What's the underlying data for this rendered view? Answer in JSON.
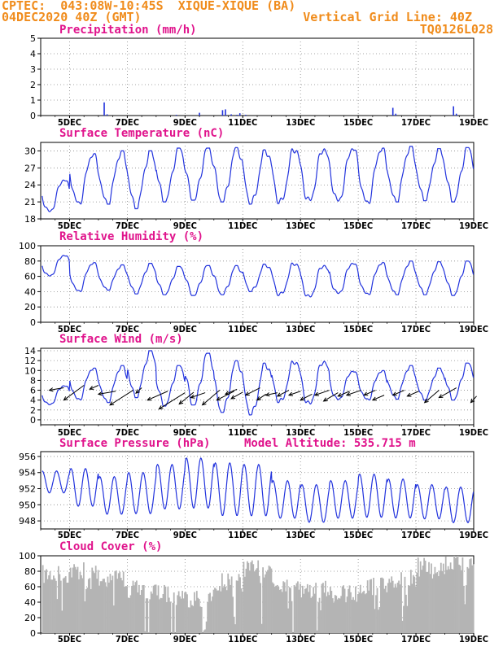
{
  "header": {
    "line1_left": "CPTEC:  043:08W-10:45S  XIQUE-XIQUE (BA)",
    "line2_left": "04DEC2020 40Z (GMT)",
    "line1_right": "Vertical Grid Line: 40Z",
    "line2_right": "TQ0126L028"
  },
  "colors": {
    "header": "#f08c1c",
    "title": "#e0148c",
    "line": "#2233dd",
    "bar": "#b4b4b4",
    "wind": "#000000"
  },
  "x_axis": {
    "tick_labels": [
      "5DEC",
      "7DEC",
      "9DEC",
      "11DEC",
      "13DEC",
      "15DEC",
      "17DEC",
      "19DEC"
    ],
    "tick_days": [
      5,
      7,
      9,
      11,
      13,
      15,
      17,
      19
    ],
    "xlim": [
      4.0,
      19.0
    ]
  },
  "chart_data": [
    {
      "id": "precip",
      "type": "bar",
      "title": "Precipitation (mm/h)",
      "ylim": [
        0,
        5
      ],
      "yticks": [
        "0",
        "1",
        "2",
        "3",
        "4",
        "5"
      ],
      "values": [
        [
          6.2,
          0.85
        ],
        [
          6.3,
          0.08
        ],
        [
          8.7,
          0.05
        ],
        [
          9.5,
          0.18
        ],
        [
          10.3,
          0.35
        ],
        [
          10.4,
          0.4
        ],
        [
          10.6,
          0.08
        ],
        [
          10.8,
          0.05
        ],
        [
          10.9,
          0.15
        ],
        [
          11.1,
          0.05
        ],
        [
          16.2,
          0.5
        ],
        [
          16.3,
          0.12
        ],
        [
          18.3,
          0.6
        ],
        [
          18.4,
          0.12
        ]
      ]
    },
    {
      "id": "temp",
      "type": "line",
      "title": "Surface Temperature (nC)",
      "ylim": [
        18,
        31.5
      ],
      "yticks": [
        "18",
        "21",
        "24",
        "27",
        "30"
      ],
      "series_params": {
        "days": [
          4,
          5,
          6,
          7,
          8,
          9,
          10,
          11,
          12,
          13,
          14,
          15,
          16,
          17,
          18,
          19
        ],
        "min": [
          19.2,
          20.6,
          20.6,
          19.8,
          21.0,
          21.3,
          21.0,
          20.6,
          20.7,
          21.0,
          21.0,
          20.7,
          21.0,
          21.2,
          21.0,
          23.0
        ],
        "max": [
          25.0,
          29.5,
          30.0,
          30.0,
          30.5,
          30.5,
          30.6,
          30.2,
          30.5,
          30.5,
          30.6,
          30.5,
          30.8,
          30.4,
          30.6,
          30.6
        ]
      }
    },
    {
      "id": "rh",
      "type": "line",
      "title": "Relative Humidity (%)",
      "ylim": [
        0,
        100
      ],
      "yticks": [
        "0",
        "20",
        "40",
        "60",
        "80",
        "100"
      ],
      "series_params": {
        "days": [
          4,
          5,
          6,
          7,
          8,
          9,
          10,
          11,
          12,
          13,
          14,
          15,
          16,
          17,
          18,
          19
        ],
        "min": [
          60,
          40,
          42,
          37,
          36,
          35,
          36,
          40,
          35,
          32,
          37,
          36,
          36,
          36,
          35,
          36
        ],
        "max": [
          88,
          78,
          75,
          77,
          73,
          74,
          74,
          76,
          78,
          75,
          78,
          78,
          80,
          79,
          80,
          78
        ]
      }
    },
    {
      "id": "wind",
      "type": "line",
      "title": "Surface Wind (m/s)",
      "ylim": [
        -1,
        14.5
      ],
      "yticks": [
        "0",
        "2",
        "4",
        "6",
        "8",
        "10",
        "12",
        "14"
      ],
      "series_params": {
        "days": [
          4,
          5,
          6,
          7,
          8,
          9,
          10,
          11,
          12,
          13,
          14,
          15,
          16,
          17,
          18,
          19
        ],
        "min": [
          3.0,
          4.0,
          3.5,
          4.5,
          2.8,
          3.0,
          1.5,
          1.0,
          3.5,
          3.0,
          4.0,
          4.0,
          4.2,
          4.0,
          4.0,
          5.0
        ],
        "max": [
          7.0,
          10.5,
          11.0,
          14.0,
          11.0,
          13.5,
          12.0,
          11.5,
          12.0,
          12.0,
          10.0,
          10.0,
          11.0,
          10.5,
          11.5,
          10.0
        ]
      },
      "barbs": [
        [
          4.3,
          6.0,
          4.8,
          6.5
        ],
        [
          4.8,
          4.0,
          5.5,
          7.0
        ],
        [
          5.7,
          6.2,
          6.0,
          7.0
        ],
        [
          6.0,
          5.2,
          6.6,
          5.8
        ],
        [
          6.4,
          3.0,
          7.2,
          6.0
        ],
        [
          7.3,
          5.4,
          7.5,
          6.5
        ],
        [
          7.7,
          4.0,
          8.4,
          5.8
        ],
        [
          8.1,
          2.2,
          9.0,
          5.5
        ],
        [
          8.8,
          3.2,
          9.3,
          5.6
        ],
        [
          9.2,
          4.5,
          9.7,
          5.5
        ],
        [
          9.6,
          3.0,
          10.2,
          6.0
        ],
        [
          10.1,
          4.0,
          10.7,
          5.8
        ],
        [
          10.4,
          5.2,
          10.8,
          6.2
        ],
        [
          10.6,
          4.3,
          11.0,
          5.6
        ],
        [
          11.1,
          5.0,
          11.6,
          6.5
        ],
        [
          11.5,
          4.0,
          11.8,
          5.2
        ],
        [
          11.8,
          5.0,
          12.2,
          5.5
        ],
        [
          12.2,
          4.8,
          12.6,
          6.0
        ],
        [
          12.6,
          5.0,
          13.0,
          5.8
        ],
        [
          13.0,
          4.0,
          13.4,
          5.2
        ],
        [
          13.5,
          5.0,
          14.0,
          6.0
        ],
        [
          13.8,
          3.8,
          14.3,
          5.5
        ],
        [
          14.3,
          4.8,
          14.7,
          5.8
        ],
        [
          14.6,
          5.0,
          15.1,
          6.0
        ],
        [
          15.2,
          5.0,
          15.6,
          6.0
        ],
        [
          15.5,
          4.0,
          15.9,
          5.0
        ],
        [
          16.2,
          5.0,
          16.6,
          6.0
        ],
        [
          16.7,
          4.8,
          17.1,
          5.8
        ],
        [
          17.3,
          3.5,
          17.8,
          6.0
        ],
        [
          17.8,
          4.5,
          18.4,
          6.5
        ],
        [
          18.9,
          3.5,
          19.1,
          4.8
        ]
      ]
    },
    {
      "id": "pres",
      "type": "line",
      "title": "Surface Pressure (hPa)",
      "annotation": "Model Altitude: 535.715 m",
      "ylim": [
        947.0,
        956.6
      ],
      "yticks": [
        "948",
        "950",
        "952",
        "954",
        "956"
      ],
      "series_params": {
        "days": [
          4,
          5,
          6,
          7,
          8,
          9,
          10,
          11,
          12,
          13,
          14,
          15,
          16,
          17,
          18,
          19
        ],
        "min": [
          951.0,
          949.0,
          948.0,
          948.0,
          948.5,
          948.5,
          947.5,
          947.5,
          947.5,
          947.0,
          947.5,
          947.5,
          947.5,
          947.5,
          947.0,
          948.0
        ],
        "max": [
          954.2,
          954.5,
          953.5,
          954.0,
          955.0,
          955.8,
          955.2,
          955.0,
          953.0,
          952.5,
          953.0,
          953.8,
          953.2,
          952.5,
          952.2,
          952.0
        ]
      }
    },
    {
      "id": "cloud",
      "type": "bar",
      "title": "Cloud Cover (%)",
      "ylim": [
        0,
        100
      ],
      "yticks": [
        "0",
        "20",
        "40",
        "60",
        "80",
        "100"
      ],
      "series_params": {
        "days": [
          4,
          5,
          6,
          7,
          8,
          9,
          10,
          11,
          12,
          13,
          14,
          15,
          16,
          17,
          18,
          19
        ],
        "level": [
          80,
          85,
          75,
          60,
          55,
          50,
          70,
          88,
          70,
          60,
          55,
          65,
          75,
          90,
          95,
          96
        ]
      }
    }
  ]
}
